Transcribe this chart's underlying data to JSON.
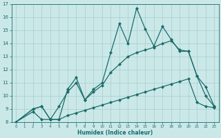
{
  "xlabel": "Humidex (Indice chaleur)",
  "bg_color": "#cbe8e8",
  "line_color": "#1a6b6b",
  "grid_color": "#a8cccc",
  "xlim": [
    -0.5,
    23.5
  ],
  "ylim": [
    8,
    17
  ],
  "xticks": [
    0,
    1,
    2,
    3,
    4,
    5,
    6,
    7,
    8,
    9,
    10,
    11,
    12,
    13,
    14,
    15,
    16,
    17,
    18,
    19,
    20,
    21,
    22,
    23
  ],
  "yticks": [
    8,
    9,
    10,
    11,
    12,
    13,
    14,
    15,
    16,
    17
  ],
  "line1_x": [
    0,
    2,
    3,
    4,
    5,
    6,
    7,
    8,
    9,
    10,
    11,
    12,
    13,
    14,
    15,
    16,
    17,
    18,
    19,
    20,
    21,
    22,
    23
  ],
  "line1_y": [
    8.0,
    9.0,
    9.2,
    8.2,
    8.2,
    10.5,
    11.4,
    9.7,
    10.5,
    11.0,
    13.3,
    15.5,
    14.0,
    16.7,
    15.1,
    13.8,
    15.3,
    14.3,
    13.4,
    13.4,
    11.5,
    10.7,
    9.2
  ],
  "line2_x": [
    0,
    2,
    3,
    4,
    5,
    6,
    7,
    8,
    9,
    10,
    11,
    12,
    13,
    14,
    15,
    16,
    17,
    18,
    19,
    20,
    21,
    22,
    23
  ],
  "line2_y": [
    8.0,
    9.0,
    9.2,
    8.2,
    9.2,
    10.3,
    11.0,
    9.7,
    10.3,
    10.8,
    11.8,
    12.4,
    13.0,
    13.3,
    13.5,
    13.7,
    14.0,
    14.2,
    13.5,
    13.4,
    11.5,
    10.0,
    9.2
  ],
  "line3_x": [
    0,
    2,
    3,
    4,
    5,
    6,
    7,
    8,
    9,
    10,
    11,
    12,
    13,
    14,
    15,
    16,
    17,
    18,
    19,
    20,
    21,
    22,
    23
  ],
  "line3_y": [
    8.0,
    8.8,
    8.2,
    8.2,
    8.2,
    8.5,
    8.7,
    8.9,
    9.1,
    9.3,
    9.5,
    9.7,
    9.9,
    10.1,
    10.3,
    10.5,
    10.7,
    10.9,
    11.1,
    11.3,
    9.5,
    9.2,
    9.1
  ]
}
